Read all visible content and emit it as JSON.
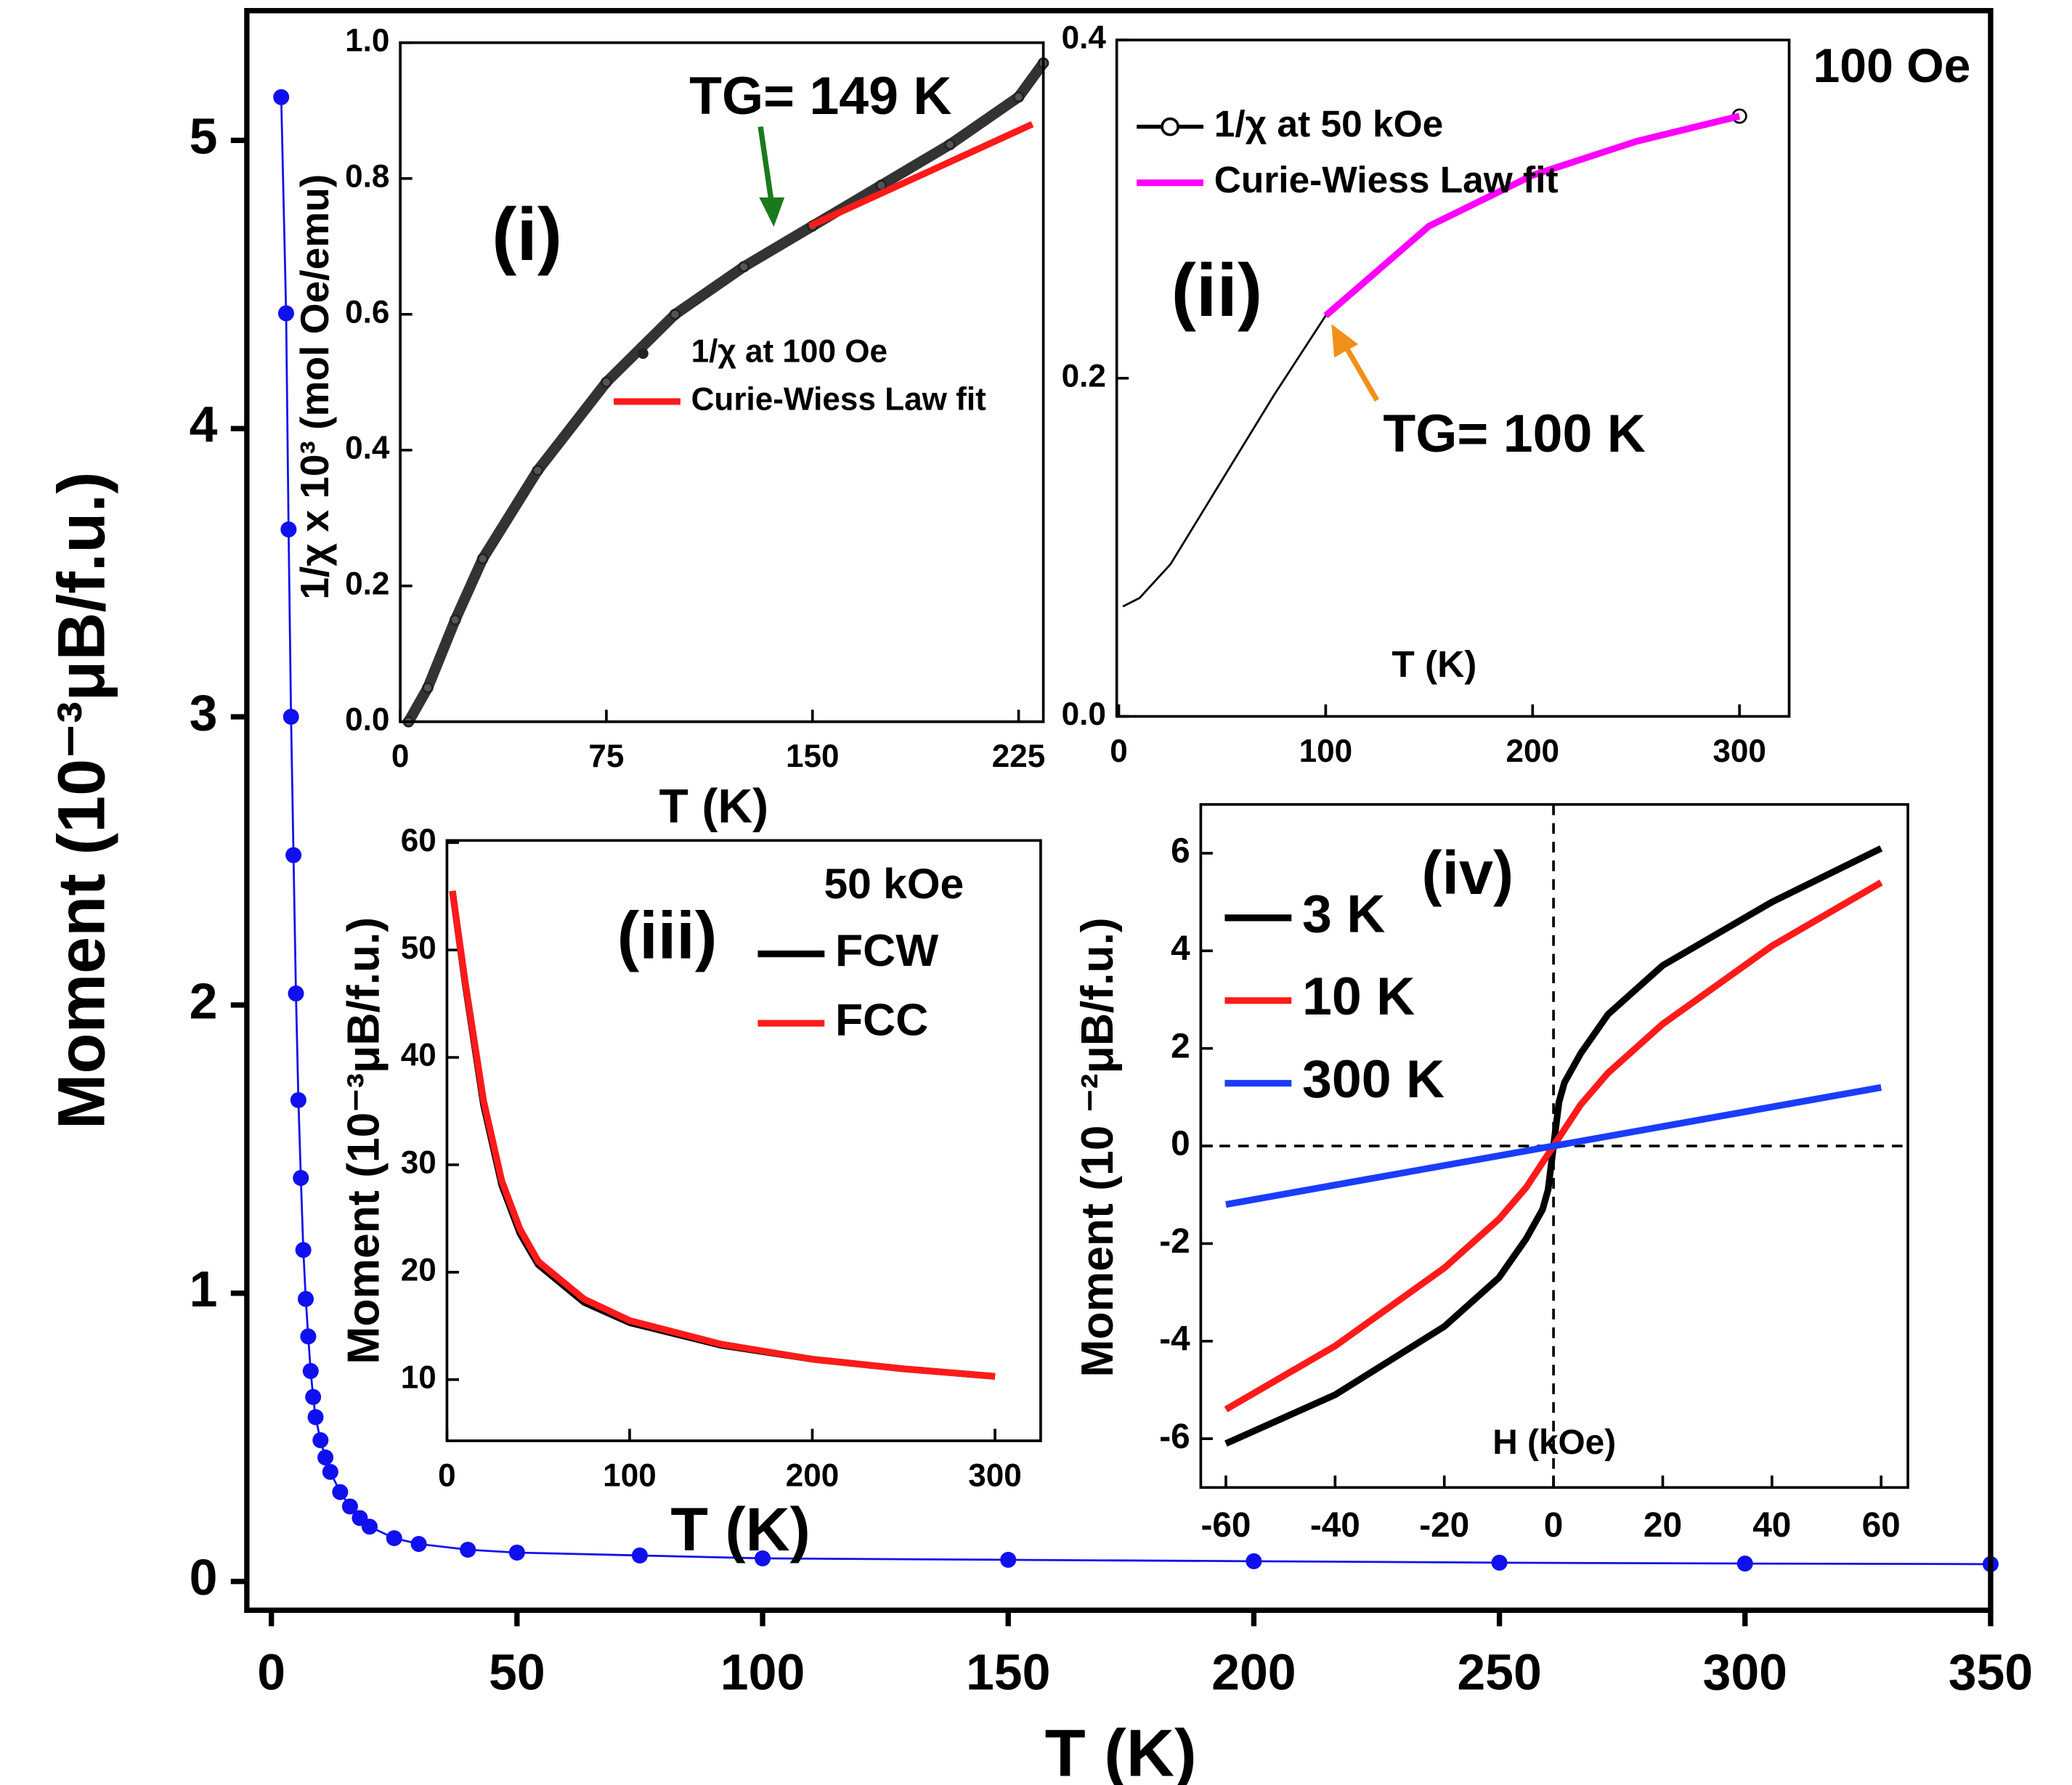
{
  "chart_data": [
    {
      "type": "line",
      "xlabel": "T (K)",
      "ylabel": "Moment (10⁻³μB/f.u.)",
      "xlim": [
        -5,
        350
      ],
      "ylim": [
        -0.1,
        5.45
      ],
      "xticks": [
        0,
        50,
        100,
        150,
        200,
        250,
        300,
        350
      ],
      "yticks": [
        0,
        1,
        2,
        3,
        4,
        5
      ],
      "series": [
        {
          "color": "#1010ee",
          "marker": "circle",
          "x": [
            2,
            3,
            3.5,
            4,
            4.5,
            5,
            5.5,
            6,
            6.5,
            7,
            7.5,
            8,
            8.5,
            9,
            10,
            11,
            12,
            14,
            16,
            18,
            20,
            25,
            30,
            40,
            50,
            75,
            100,
            150,
            200,
            250,
            300,
            350
          ],
          "values": [
            5.15,
            4.4,
            3.65,
            3.0,
            2.52,
            2.04,
            1.67,
            1.4,
            1.15,
            0.98,
            0.85,
            0.73,
            0.64,
            0.57,
            0.49,
            0.43,
            0.38,
            0.31,
            0.26,
            0.22,
            0.19,
            0.15,
            0.13,
            0.11,
            0.1,
            0.09,
            0.08,
            0.075,
            0.07,
            0.065,
            0.062,
            0.06
          ]
        }
      ]
    },
    {
      "type": "line",
      "panel_label": "(i)",
      "annotation": "TG= 149 K",
      "xlabel": "T (K)",
      "ylabel": "1/χ x 10³ (mol Oe/emu)",
      "xlim": [
        0,
        234
      ],
      "ylim": [
        0,
        1
      ],
      "xticks": [
        0,
        75,
        150,
        225
      ],
      "yticks": [
        {
          "value": 0,
          "label": "0.0"
        },
        0.2,
        0.4,
        0.6,
        0.8,
        {
          "value": 1,
          "label": "1.0"
        }
      ],
      "legend": true,
      "series": [
        {
          "name": "1/χ at 100 Oe",
          "color": "#222222",
          "marker": "dot",
          "x": [
            3,
            10,
            20,
            30,
            50,
            75,
            100,
            125,
            150,
            175,
            200,
            225,
            234
          ],
          "values": [
            0,
            0.05,
            0.15,
            0.24,
            0.37,
            0.5,
            0.6,
            0.67,
            0.73,
            0.79,
            0.85,
            0.92,
            0.97
          ]
        },
        {
          "name": "Curie-Wiess Law fit",
          "color": "#ff1a1a",
          "x": [
            149,
            230
          ],
          "values": [
            0.73,
            0.88
          ]
        }
      ]
    },
    {
      "type": "line",
      "panel_label": "(ii)",
      "annotation": "TG= 100 K",
      "note": "100 Oe",
      "xlabel": "T (K)",
      "xlim": [
        -1,
        324
      ],
      "ylim": [
        0,
        0.4
      ],
      "xticks": [
        0,
        100,
        200,
        300
      ],
      "yticks": [
        {
          "value": 0,
          "label": "0.0"
        },
        0.2,
        0.4
      ],
      "legend": true,
      "series": [
        {
          "name": "1/χ at 50 kOe",
          "color": "#000000",
          "marker": "open",
          "x": [
            2,
            10,
            25,
            50,
            75,
            100,
            150,
            200,
            250,
            300
          ],
          "values": [
            0.065,
            0.07,
            0.09,
            0.14,
            0.19,
            0.237,
            0.29,
            0.32,
            0.34,
            0.355
          ]
        },
        {
          "name": "Curie-Wiess Law fit",
          "color": "#ff00ff",
          "x": [
            100,
            150,
            200,
            250,
            300
          ],
          "values": [
            0.237,
            0.29,
            0.32,
            0.34,
            0.355
          ]
        }
      ]
    },
    {
      "type": "line",
      "panel_label": "(iii)",
      "legend_title": "50 kOe",
      "xlabel": "T (K)",
      "ylabel": "Moment (10⁻³μB/f.u.)",
      "xlim": [
        0,
        325
      ],
      "ylim": [
        4.3,
        60.2
      ],
      "xticks": [
        0,
        100,
        200,
        300
      ],
      "yticks": [
        10,
        20,
        30,
        40,
        50,
        60
      ],
      "legend": true,
      "series": [
        {
          "name": "FCW",
          "color": "#000000",
          "x": [
            3,
            10,
            20,
            30,
            40,
            50,
            75,
            100,
            150,
            200,
            250,
            300
          ],
          "values": [
            55.5,
            46.8,
            35.6,
            28.1,
            23.6,
            20.7,
            17.2,
            15.3,
            13.2,
            11.9,
            11,
            10.3
          ]
        },
        {
          "name": "FCC",
          "color": "#ff1a1a",
          "x": [
            3,
            10,
            20,
            30,
            40,
            50,
            75,
            100,
            150,
            200,
            250,
            300
          ],
          "values": [
            55.5,
            47,
            36,
            28.5,
            24,
            21,
            17.5,
            15.5,
            13.3,
            11.9,
            11,
            10.3
          ]
        }
      ]
    },
    {
      "type": "line",
      "panel_label": "(iv)",
      "xlabel": "H (kOe)",
      "ylabel": "Moment (10 ⁻²μB/f.u.)",
      "zero_lines": true,
      "xlim": [
        -64.6,
        64.9
      ],
      "ylim": [
        -7,
        7
      ],
      "xticks": [
        -60,
        -40,
        -20,
        0,
        20,
        40,
        60
      ],
      "yticks": [
        -6,
        -4,
        -2,
        0,
        2,
        4,
        6
      ],
      "legend": true,
      "series": [
        {
          "name": "3 K",
          "color": "#000000",
          "x": [
            -60,
            -40,
            -20,
            -10,
            -5,
            -2,
            -1,
            0,
            1,
            2,
            5,
            10,
            20,
            40,
            60
          ],
          "values": [
            -6.1,
            -5.1,
            -3.7,
            -2.7,
            -1.9,
            -1.3,
            -0.9,
            0,
            0.9,
            1.3,
            1.9,
            2.7,
            3.7,
            5.0,
            6.1
          ]
        },
        {
          "name": "10 K",
          "color": "#ff1a1a",
          "x": [
            -60,
            -40,
            -20,
            -10,
            -5,
            0,
            5,
            10,
            20,
            40,
            60
          ],
          "values": [
            -5.4,
            -4.1,
            -2.5,
            -1.5,
            -0.85,
            0,
            0.85,
            1.5,
            2.5,
            4.1,
            5.4
          ]
        },
        {
          "name": "300 K",
          "color": "#1a3cff",
          "x": [
            -60,
            60
          ],
          "values": [
            -1.2,
            1.2
          ]
        }
      ]
    }
  ]
}
